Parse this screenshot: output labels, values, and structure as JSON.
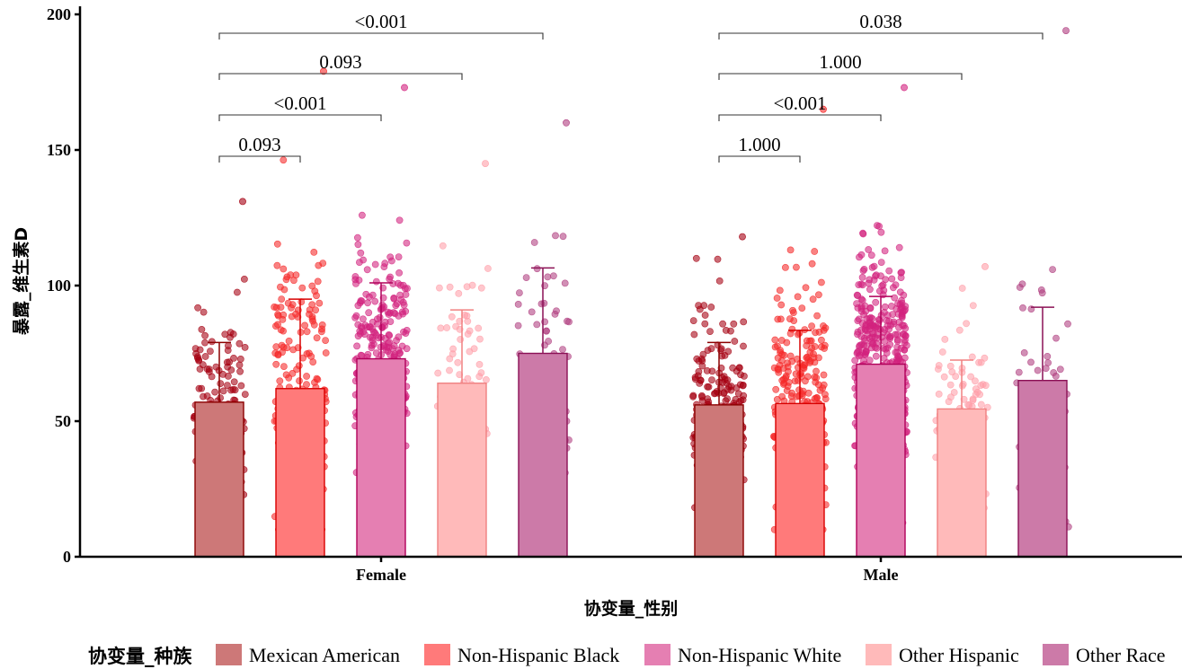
{
  "chart_data": {
    "type": "bar",
    "title": "",
    "xlabel": "协变量_性别",
    "ylabel": "暴露_维生素D",
    "ylim": [
      0,
      200
    ],
    "yticks": [
      0,
      50,
      100,
      150,
      200
    ],
    "grid": false,
    "legend_position": "bottom",
    "legend_title": "协变量_种族",
    "categories": [
      "Female",
      "Male"
    ],
    "series": [
      {
        "name": "Mexican American",
        "fill": "#CD7878",
        "stroke": "#8B0000",
        "point": "#A50012",
        "values": [
          57,
          56
        ],
        "sd": [
          22,
          23
        ],
        "n": [
          140,
          200
        ],
        "max": [
          131,
          118
        ]
      },
      {
        "name": "Non-Hispanic Black",
        "fill": "#FF7A7A",
        "stroke": "#D80000",
        "point": "#F52828",
        "values": [
          62,
          56.5
        ],
        "sd": [
          33,
          27
        ],
        "n": [
          190,
          240
        ],
        "max": [
          179,
          165
        ]
      },
      {
        "name": "Non-Hispanic White",
        "fill": "#E57FB2",
        "stroke": "#B0005A",
        "point": "#D2227E",
        "values": [
          73,
          71
        ],
        "sd": [
          28,
          25
        ],
        "n": [
          260,
          420
        ],
        "max": [
          173,
          173
        ]
      },
      {
        "name": "Other Hispanic",
        "fill": "#FFBABA",
        "stroke": "#F08080",
        "point": "#FF9EA8",
        "values": [
          64,
          54.5
        ],
        "sd": [
          27,
          18
        ],
        "n": [
          70,
          90
        ],
        "max": [
          145,
          107
        ]
      },
      {
        "name": "Other Race",
        "fill": "#CC7AA8",
        "stroke": "#8B1055",
        "point": "#B03E80",
        "values": [
          75,
          65
        ],
        "sd": [
          31.5,
          27
        ],
        "n": [
          55,
          45
        ],
        "max": [
          160,
          194
        ]
      }
    ],
    "comparisons": [
      {
        "category": "Female",
        "from": "Mexican American",
        "to": "Non-Hispanic Black",
        "label": "0.093"
      },
      {
        "category": "Female",
        "from": "Mexican American",
        "to": "Non-Hispanic White",
        "label": "<0.001"
      },
      {
        "category": "Female",
        "from": "Mexican American",
        "to": "Other Hispanic",
        "label": "0.093"
      },
      {
        "category": "Female",
        "from": "Mexican American",
        "to": "Other Race",
        "label": "<0.001"
      },
      {
        "category": "Male",
        "from": "Mexican American",
        "to": "Non-Hispanic Black",
        "label": "1.000"
      },
      {
        "category": "Male",
        "from": "Mexican American",
        "to": "Non-Hispanic White",
        "label": "<0.001"
      },
      {
        "category": "Male",
        "from": "Mexican American",
        "to": "Other Hispanic",
        "label": "1.000"
      },
      {
        "category": "Male",
        "from": "Mexican American",
        "to": "Other Race",
        "label": "0.038"
      }
    ]
  }
}
